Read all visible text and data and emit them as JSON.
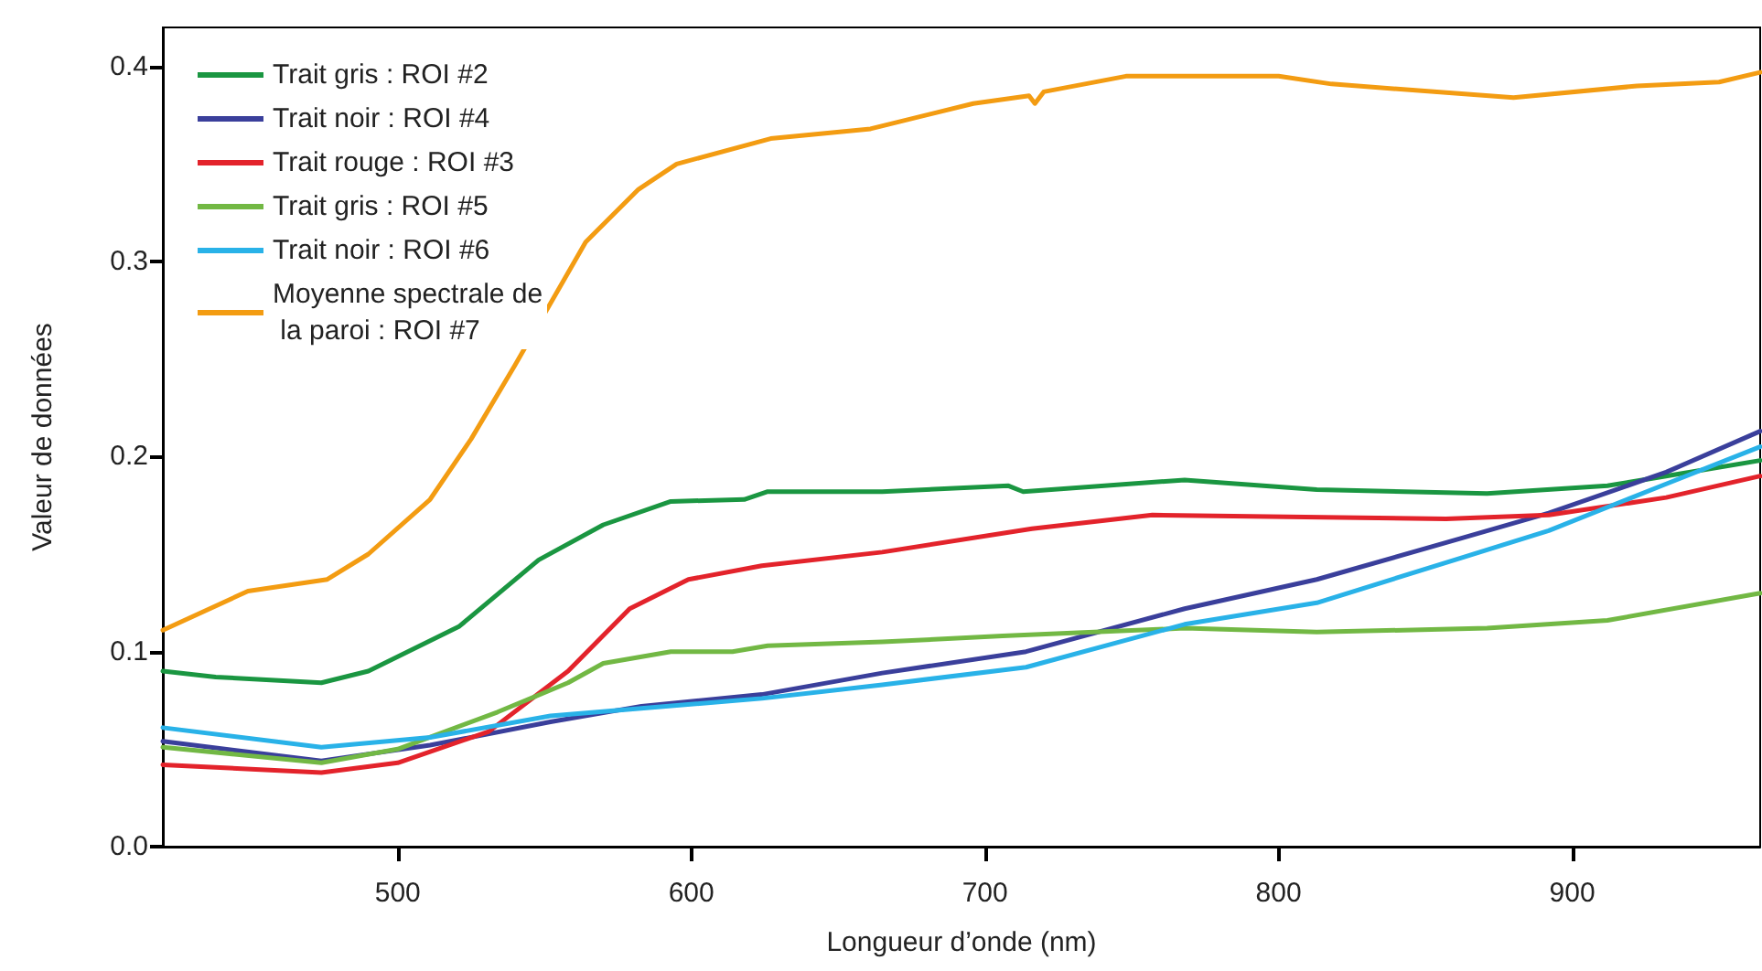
{
  "chart_data": {
    "type": "line",
    "xlabel": "Longueur d’onde (nm)",
    "ylabel": "Valeur de données",
    "xlim": [
      420,
      964
    ],
    "xticks": [
      500,
      600,
      700,
      800,
      900
    ],
    "ylim": [
      0,
      0.42
    ],
    "yticks": [
      {
        "value": 0,
        "label": "0.0"
      },
      0.1,
      0.2,
      0.3,
      0.4
    ],
    "grid": false,
    "legend": "top left",
    "marker": "none",
    "line_style": "solid",
    "series": [
      {
        "name": "Trait gris : ROI #2",
        "color": "#1a9641",
        "x": [
          420,
          438,
          474,
          490,
          521,
          548,
          570,
          593,
          618,
          626,
          665,
          708,
          713,
          768,
          813,
          871,
          912,
          964
        ],
        "values": [
          0.09,
          0.087,
          0.084,
          0.09,
          0.113,
          0.147,
          0.165,
          0.177,
          0.178,
          0.182,
          0.182,
          0.185,
          0.182,
          0.188,
          0.183,
          0.181,
          0.185,
          0.198
        ]
      },
      {
        "name": "Trait noir : ROI #4",
        "color": "#3a3f9b",
        "x": [
          420,
          474,
          511,
          552,
          583,
          624,
          665,
          714,
          768,
          813,
          862,
          892,
          932,
          964
        ],
        "values": [
          0.054,
          0.044,
          0.052,
          0.064,
          0.072,
          0.078,
          0.089,
          0.1,
          0.122,
          0.137,
          0.158,
          0.171,
          0.192,
          0.213
        ]
      },
      {
        "name": "Trait rouge : ROI #3",
        "color": "#e3232b",
        "x": [
          420,
          474,
          500,
          531,
          558,
          579,
          599,
          624,
          665,
          716,
          757,
          809,
          857,
          892,
          932,
          964
        ],
        "values": [
          0.042,
          0.038,
          0.043,
          0.059,
          0.09,
          0.122,
          0.137,
          0.144,
          0.151,
          0.163,
          0.17,
          0.169,
          0.168,
          0.17,
          0.179,
          0.19
        ]
      },
      {
        "name": "Trait gris : ROI #5",
        "color": "#72b844",
        "x": [
          420,
          474,
          500,
          534,
          558,
          570,
          593,
          614,
          626,
          665,
          706,
          768,
          813,
          871,
          912,
          964
        ],
        "values": [
          0.051,
          0.043,
          0.05,
          0.069,
          0.084,
          0.094,
          0.1,
          0.1,
          0.103,
          0.105,
          0.108,
          0.112,
          0.11,
          0.112,
          0.116,
          0.13
        ]
      },
      {
        "name": "Trait noir : ROI #6",
        "color": "#29b2e8",
        "x": [
          420,
          474,
          511,
          552,
          624,
          665,
          714,
          768,
          813,
          862,
          892,
          932,
          964
        ],
        "values": [
          0.061,
          0.051,
          0.056,
          0.067,
          0.076,
          0.083,
          0.092,
          0.114,
          0.125,
          0.148,
          0.162,
          0.186,
          0.205
        ]
      },
      {
        "name": "Moyenne spectrale de la paroi : ROI #7",
        "color": "#f39c12",
        "x": [
          420,
          449,
          476,
          490,
          511,
          525,
          540,
          564,
          582,
          595,
          627,
          661,
          696,
          715,
          717,
          720,
          748,
          800,
          818,
          880,
          922,
          950,
          964
        ],
        "values": [
          0.111,
          0.131,
          0.137,
          0.15,
          0.178,
          0.209,
          0.247,
          0.31,
          0.337,
          0.35,
          0.363,
          0.368,
          0.381,
          0.385,
          0.381,
          0.387,
          0.395,
          0.395,
          0.391,
          0.384,
          0.39,
          0.392,
          0.397
        ]
      }
    ]
  }
}
